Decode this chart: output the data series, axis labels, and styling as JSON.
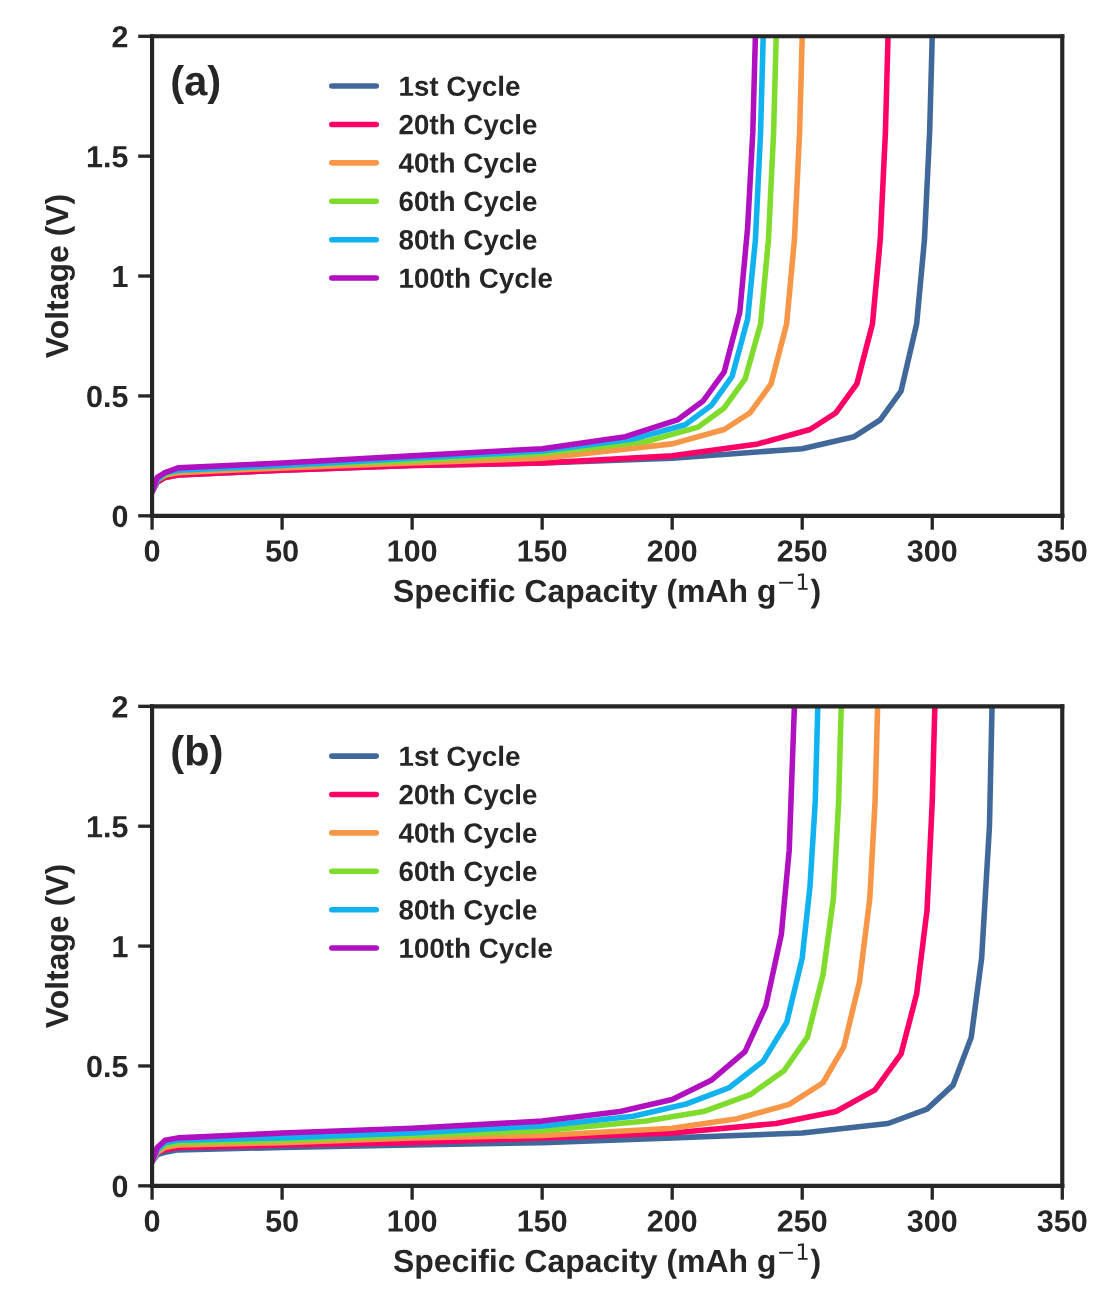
{
  "chart_data": [
    {
      "type": "line",
      "annotations": [
        "(a)"
      ],
      "xlabel": "Specific Capacity (mAh g$^{−1}$)",
      "ylabel": "Voltage (V)",
      "xlim": [
        0,
        350
      ],
      "ylim": [
        0,
        2
      ],
      "xticks": [
        0,
        50,
        100,
        150,
        200,
        250,
        300,
        350
      ],
      "yticks": [
        0,
        0.5,
        1,
        1.5,
        2
      ],
      "grid": false,
      "legend": "top left",
      "marker": "none",
      "line_style": "solid",
      "series": [
        {
          "name": "1st Cycle",
          "color": "#41689b",
          "x": [
            0,
            2,
            5,
            10,
            50,
            100,
            150,
            200,
            250,
            270,
            280,
            288,
            294,
            297,
            299,
            300
          ],
          "values": [
            0.1,
            0.14,
            0.16,
            0.17,
            0.19,
            0.21,
            0.22,
            0.24,
            0.28,
            0.33,
            0.4,
            0.52,
            0.8,
            1.15,
            1.6,
            2
          ]
        },
        {
          "name": "20th Cycle",
          "color": "#ff0066",
          "x": [
            0,
            2,
            5,
            10,
            50,
            100,
            150,
            200,
            233,
            253,
            263,
            271,
            277,
            280,
            282,
            283
          ],
          "values": [
            0.1,
            0.14,
            0.16,
            0.17,
            0.19,
            0.21,
            0.22,
            0.25,
            0.3,
            0.36,
            0.43,
            0.55,
            0.8,
            1.15,
            1.6,
            2
          ]
        },
        {
          "name": "40th Cycle",
          "color": "#f79646",
          "x": [
            0,
            2,
            5,
            10,
            50,
            100,
            150,
            200,
            220,
            230,
            238,
            244,
            247,
            249,
            250
          ],
          "values": [
            0.1,
            0.15,
            0.17,
            0.18,
            0.2,
            0.22,
            0.24,
            0.3,
            0.36,
            0.43,
            0.55,
            0.8,
            1.15,
            1.6,
            2
          ]
        },
        {
          "name": "60th Cycle",
          "color": "#7fdc2c",
          "x": [
            0,
            2,
            5,
            10,
            50,
            100,
            150,
            190,
            210,
            220,
            228,
            234,
            237,
            239,
            240
          ],
          "values": [
            0.1,
            0.15,
            0.17,
            0.19,
            0.21,
            0.23,
            0.26,
            0.31,
            0.37,
            0.45,
            0.57,
            0.8,
            1.15,
            1.6,
            2
          ]
        },
        {
          "name": "80th Cycle",
          "color": "#11b2f0",
          "x": [
            0,
            2,
            5,
            10,
            50,
            100,
            150,
            185,
            205,
            215,
            223,
            229,
            232,
            234,
            235
          ],
          "values": [
            0.1,
            0.15,
            0.18,
            0.19,
            0.21,
            0.24,
            0.27,
            0.32,
            0.38,
            0.46,
            0.58,
            0.82,
            1.15,
            1.6,
            2
          ]
        },
        {
          "name": "100th Cycle",
          "color": "#b010c0",
          "x": [
            0,
            2,
            5,
            10,
            50,
            100,
            150,
            182,
            202,
            212,
            220,
            226,
            229,
            231,
            232
          ],
          "values": [
            0.1,
            0.16,
            0.18,
            0.2,
            0.22,
            0.25,
            0.28,
            0.33,
            0.4,
            0.48,
            0.6,
            0.85,
            1.2,
            1.6,
            2
          ]
        }
      ]
    },
    {
      "type": "line",
      "annotations": [
        "(b)"
      ],
      "xlabel": "Specific Capacity (mAh g$^{−1}$)",
      "ylabel": "Voltage (V)",
      "xlim": [
        0,
        350
      ],
      "ylim": [
        0,
        2
      ],
      "xticks": [
        0,
        50,
        100,
        150,
        200,
        250,
        300,
        350
      ],
      "yticks": [
        0,
        0.5,
        1,
        1.5,
        2
      ],
      "grid": false,
      "legend": "top left",
      "marker": "none",
      "line_style": "solid",
      "series": [
        {
          "name": "1st Cycle",
          "color": "#41689b",
          "x": [
            0,
            2,
            5,
            10,
            50,
            100,
            150,
            200,
            250,
            283,
            298,
            308,
            315,
            319,
            322,
            323
          ],
          "values": [
            0.1,
            0.13,
            0.14,
            0.15,
            0.16,
            0.17,
            0.18,
            0.2,
            0.22,
            0.26,
            0.32,
            0.42,
            0.62,
            0.95,
            1.5,
            2
          ]
        },
        {
          "name": "20th Cycle",
          "color": "#ff0066",
          "x": [
            0,
            2,
            5,
            10,
            50,
            100,
            150,
            200,
            240,
            263,
            278,
            288,
            294,
            298,
            300,
            301
          ],
          "values": [
            0.1,
            0.14,
            0.15,
            0.16,
            0.17,
            0.18,
            0.2,
            0.22,
            0.26,
            0.31,
            0.4,
            0.55,
            0.8,
            1.15,
            1.6,
            2
          ]
        },
        {
          "name": "40th Cycle",
          "color": "#f79646",
          "x": [
            0,
            2,
            5,
            10,
            50,
            100,
            150,
            200,
            225,
            245,
            258,
            266,
            272,
            276,
            278,
            279
          ],
          "values": [
            0.1,
            0.14,
            0.16,
            0.17,
            0.18,
            0.2,
            0.21,
            0.24,
            0.28,
            0.34,
            0.43,
            0.58,
            0.85,
            1.2,
            1.6,
            2
          ]
        },
        {
          "name": "60th Cycle",
          "color": "#7fdc2c",
          "x": [
            0,
            2,
            5,
            10,
            50,
            100,
            150,
            190,
            212,
            230,
            243,
            252,
            258,
            262,
            264,
            265
          ],
          "values": [
            0.1,
            0.15,
            0.17,
            0.18,
            0.19,
            0.21,
            0.23,
            0.27,
            0.31,
            0.38,
            0.48,
            0.62,
            0.88,
            1.2,
            1.6,
            2
          ]
        },
        {
          "name": "80th Cycle",
          "color": "#11b2f0",
          "x": [
            0,
            2,
            5,
            10,
            50,
            100,
            150,
            185,
            205,
            222,
            235,
            244,
            250,
            253,
            255,
            256
          ],
          "values": [
            0.1,
            0.15,
            0.18,
            0.19,
            0.2,
            0.22,
            0.25,
            0.29,
            0.34,
            0.41,
            0.52,
            0.68,
            0.95,
            1.25,
            1.6,
            2
          ]
        },
        {
          "name": "100th Cycle",
          "color": "#b010c0",
          "x": [
            0,
            2,
            5,
            10,
            50,
            100,
            150,
            180,
            200,
            215,
            228,
            236,
            242,
            245,
            246,
            247
          ],
          "values": [
            0.1,
            0.16,
            0.19,
            0.2,
            0.22,
            0.24,
            0.27,
            0.31,
            0.36,
            0.44,
            0.56,
            0.75,
            1.05,
            1.4,
            1.7,
            2
          ]
        }
      ]
    }
  ]
}
